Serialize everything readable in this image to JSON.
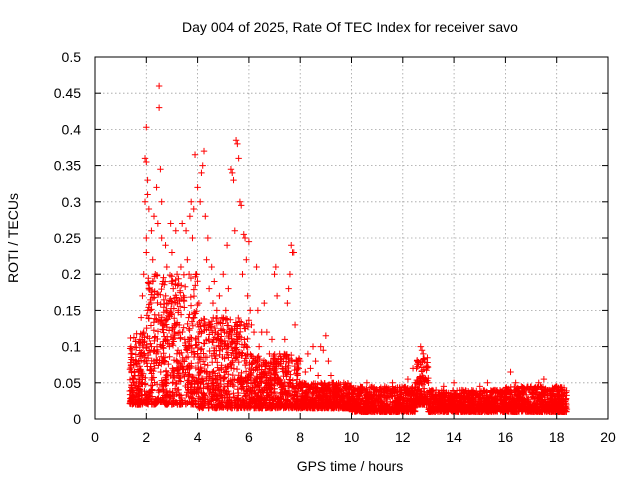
{
  "chart_data": {
    "type": "scatter",
    "title": "Day 004 of 2025, Rate Of TEC Index for receiver savo",
    "xlabel": "GPS time / hours",
    "ylabel": "ROTI / TECUs",
    "xlim": [
      0,
      20
    ],
    "ylim": [
      0,
      0.5
    ],
    "grid": true,
    "x_ticks": [
      0,
      2,
      4,
      6,
      8,
      10,
      12,
      14,
      16,
      18,
      20
    ],
    "x_tick_labels": [
      "0",
      "2",
      "4",
      "6",
      "8",
      "10",
      "12",
      "14",
      "16",
      "18",
      "20"
    ],
    "y_ticks": [
      0,
      0.05,
      0.1,
      0.15,
      0.2,
      0.25,
      0.3,
      0.35,
      0.4,
      0.45,
      0.5
    ],
    "y_tick_labels": [
      "0",
      "0.05",
      "0.1",
      "0.15",
      "0.2",
      "0.25",
      "0.3",
      "0.35",
      "0.4",
      "0.45",
      "0.5"
    ],
    "marker": "+",
    "series": [
      {
        "name": "ROTI",
        "color": "#ff0000",
        "points": [
          [
            1.4,
            0.1
          ],
          [
            1.4,
            0.09
          ],
          [
            1.45,
            0.03
          ],
          [
            1.5,
            0.05
          ],
          [
            1.55,
            0.065
          ],
          [
            1.6,
            0.075
          ],
          [
            1.6,
            0.03
          ],
          [
            1.65,
            0.02
          ],
          [
            1.7,
            0.08
          ],
          [
            1.7,
            0.04
          ],
          [
            1.75,
            0.11
          ],
          [
            1.8,
            0.06
          ],
          [
            1.8,
            0.14
          ],
          [
            1.85,
            0.17
          ],
          [
            1.85,
            0.05
          ],
          [
            1.9,
            0.12
          ],
          [
            1.9,
            0.2
          ],
          [
            1.95,
            0.3
          ],
          [
            1.95,
            0.36
          ],
          [
            2.0,
            0.355
          ],
          [
            2.0,
            0.23
          ],
          [
            2.0,
            0.25
          ],
          [
            2.0,
            0.403
          ],
          [
            2.05,
            0.33
          ],
          [
            2.05,
            0.31
          ],
          [
            2.1,
            0.29
          ],
          [
            2.1,
            0.18
          ],
          [
            2.15,
            0.15
          ],
          [
            2.2,
            0.1
          ],
          [
            2.2,
            0.26
          ],
          [
            2.25,
            0.22
          ],
          [
            2.3,
            0.28
          ],
          [
            2.3,
            0.08
          ],
          [
            2.35,
            0.2
          ],
          [
            2.4,
            0.32
          ],
          [
            2.45,
            0.27
          ],
          [
            2.5,
            0.46
          ],
          [
            2.5,
            0.43
          ],
          [
            2.55,
            0.345
          ],
          [
            2.6,
            0.3
          ],
          [
            2.6,
            0.25
          ],
          [
            2.65,
            0.19
          ],
          [
            2.7,
            0.13
          ],
          [
            2.75,
            0.24
          ],
          [
            2.8,
            0.21
          ],
          [
            2.85,
            0.16
          ],
          [
            2.9,
            0.1
          ],
          [
            2.95,
            0.27
          ],
          [
            3.0,
            0.23
          ],
          [
            3.05,
            0.18
          ],
          [
            3.1,
            0.12
          ],
          [
            3.15,
            0.26
          ],
          [
            3.2,
            0.2
          ],
          [
            3.25,
            0.15
          ],
          [
            3.3,
            0.09
          ],
          [
            3.35,
            0.21
          ],
          [
            3.4,
            0.27
          ],
          [
            3.45,
            0.17
          ],
          [
            3.5,
            0.11
          ],
          [
            3.55,
            0.26
          ],
          [
            3.6,
            0.22
          ],
          [
            3.65,
            0.14
          ],
          [
            3.7,
            0.28
          ],
          [
            3.75,
            0.3
          ],
          [
            3.8,
            0.25
          ],
          [
            3.85,
            0.29
          ],
          [
            3.9,
            0.365
          ],
          [
            3.95,
            0.2
          ],
          [
            4.0,
            0.32
          ],
          [
            4.05,
            0.16
          ],
          [
            4.1,
            0.3
          ],
          [
            4.15,
            0.34
          ],
          [
            4.2,
            0.35
          ],
          [
            4.25,
            0.37
          ],
          [
            4.3,
            0.28
          ],
          [
            4.35,
            0.22
          ],
          [
            4.4,
            0.25
          ],
          [
            4.45,
            0.18
          ],
          [
            4.5,
            0.13
          ],
          [
            4.55,
            0.21
          ],
          [
            4.6,
            0.16
          ],
          [
            4.65,
            0.19
          ],
          [
            4.7,
            0.12
          ],
          [
            4.75,
            0.15
          ],
          [
            4.8,
            0.11
          ],
          [
            4.85,
            0.17
          ],
          [
            4.9,
            0.1
          ],
          [
            4.95,
            0.14
          ],
          [
            5.0,
            0.2
          ],
          [
            5.05,
            0.12
          ],
          [
            5.1,
            0.15
          ],
          [
            5.15,
            0.24
          ],
          [
            5.2,
            0.18
          ],
          [
            5.25,
            0.12
          ],
          [
            5.3,
            0.345
          ],
          [
            5.35,
            0.34
          ],
          [
            5.4,
            0.33
          ],
          [
            5.45,
            0.26
          ],
          [
            5.5,
            0.385
          ],
          [
            5.55,
            0.38
          ],
          [
            5.6,
            0.36
          ],
          [
            5.65,
            0.3
          ],
          [
            5.7,
            0.295
          ],
          [
            5.75,
            0.2
          ],
          [
            5.8,
            0.255
          ],
          [
            5.85,
            0.25
          ],
          [
            5.9,
            0.22
          ],
          [
            5.95,
            0.17
          ],
          [
            6.0,
            0.245
          ],
          [
            6.05,
            0.15
          ],
          [
            6.1,
            0.13
          ],
          [
            6.2,
            0.12
          ],
          [
            6.3,
            0.21
          ],
          [
            6.35,
            0.15
          ],
          [
            6.4,
            0.1
          ],
          [
            6.5,
            0.12
          ],
          [
            6.6,
            0.16
          ],
          [
            6.7,
            0.12
          ],
          [
            6.8,
            0.09
          ],
          [
            6.9,
            0.11
          ],
          [
            7.0,
            0.2
          ],
          [
            7.05,
            0.21
          ],
          [
            7.1,
            0.17
          ],
          [
            7.2,
            0.09
          ],
          [
            7.3,
            0.07
          ],
          [
            7.4,
            0.11
          ],
          [
            7.5,
            0.16
          ],
          [
            7.55,
            0.18
          ],
          [
            7.6,
            0.2
          ],
          [
            7.65,
            0.24
          ],
          [
            7.7,
            0.23
          ],
          [
            7.75,
            0.23
          ],
          [
            7.8,
            0.13
          ],
          [
            7.9,
            0.06
          ],
          [
            8.0,
            0.08
          ],
          [
            8.1,
            0.05
          ],
          [
            8.2,
            0.065
          ],
          [
            8.3,
            0.09
          ],
          [
            8.4,
            0.07
          ],
          [
            8.5,
            0.1
          ],
          [
            8.6,
            0.08
          ],
          [
            8.7,
            0.06
          ],
          [
            8.8,
            0.1
          ],
          [
            8.9,
            0.095
          ],
          [
            9.0,
            0.115
          ],
          [
            9.1,
            0.08
          ],
          [
            9.2,
            0.06
          ],
          [
            9.3,
            0.05
          ],
          [
            9.5,
            0.04
          ],
          [
            9.7,
            0.05
          ],
          [
            10.0,
            0.04
          ],
          [
            10.3,
            0.035
          ],
          [
            10.6,
            0.05
          ],
          [
            11.0,
            0.04
          ],
          [
            11.3,
            0.045
          ],
          [
            11.6,
            0.05
          ],
          [
            11.9,
            0.04
          ],
          [
            12.2,
            0.055
          ],
          [
            12.4,
            0.07
          ],
          [
            12.5,
            0.05
          ],
          [
            12.7,
            0.1
          ],
          [
            12.75,
            0.095
          ],
          [
            12.8,
            0.09
          ],
          [
            12.85,
            0.08
          ],
          [
            13.0,
            0.05
          ],
          [
            13.3,
            0.04
          ],
          [
            13.6,
            0.045
          ],
          [
            14.0,
            0.05
          ],
          [
            14.3,
            0.04
          ],
          [
            14.6,
            0.035
          ],
          [
            15.0,
            0.045
          ],
          [
            15.3,
            0.05
          ],
          [
            15.6,
            0.04
          ],
          [
            16.0,
            0.035
          ],
          [
            16.2,
            0.065
          ],
          [
            16.4,
            0.05
          ],
          [
            16.7,
            0.04
          ],
          [
            17.0,
            0.045
          ],
          [
            17.3,
            0.05
          ],
          [
            17.5,
            0.055
          ],
          [
            17.7,
            0.04
          ],
          [
            18.0,
            0.045
          ],
          [
            18.2,
            0.04
          ],
          [
            18.3,
            0.035
          ]
        ]
      }
    ],
    "density_bands": [
      [
        1.35,
        2.0,
        0.02,
        0.12
      ],
      [
        2.0,
        4.0,
        0.02,
        0.2
      ],
      [
        4.0,
        6.0,
        0.015,
        0.14
      ],
      [
        6.0,
        8.0,
        0.015,
        0.09
      ],
      [
        8.0,
        10.0,
        0.015,
        0.05
      ],
      [
        10.0,
        12.5,
        0.01,
        0.045
      ],
      [
        12.5,
        13.0,
        0.02,
        0.09
      ],
      [
        13.0,
        16.0,
        0.01,
        0.04
      ],
      [
        16.0,
        18.4,
        0.01,
        0.045
      ]
    ]
  }
}
